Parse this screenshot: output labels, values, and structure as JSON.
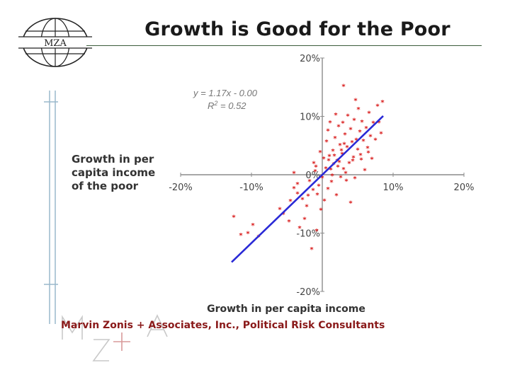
{
  "header": {
    "logo_text": "MZA",
    "title": "Growth is Good for the Poor"
  },
  "footer": {
    "company": "Marvin Zonis + Associates, Inc., Political Risk Consultants"
  },
  "colors": {
    "points": "#d81818",
    "fit_line": "#2a2ad6",
    "axes": "#8c8c8c",
    "footer_text": "#8a1a1a",
    "rule": "#3c5c3c"
  },
  "chart_data": {
    "type": "scatter",
    "title": "",
    "xlabel": "Growth in per capita income",
    "ylabel": "Growth in per capita income of the poor",
    "xlim": [
      -20,
      20
    ],
    "ylim": [
      -20,
      20
    ],
    "x_ticks": [
      "-20%",
      "-10%",
      "10%",
      "20%"
    ],
    "y_ticks": [
      "20%",
      "10%",
      "0%",
      "-10%",
      "-20%"
    ],
    "equation": "y = 1.17x - 0.00",
    "r2_label": "R",
    "r2_sup": "2",
    "r2_value": " = 0.52",
    "fit": {
      "slope": 1.17,
      "intercept": 0.0,
      "x_range": [
        -12.8,
        8.6
      ]
    },
    "grid": false,
    "series": [
      {
        "marker": "asterisk",
        "points": [
          [
            -12.5,
            -7.2
          ],
          [
            -11.5,
            -10.3
          ],
          [
            -10.5,
            -10.0
          ],
          [
            -9.8,
            -8.6
          ],
          [
            -9.0,
            -10.6
          ],
          [
            -6.0,
            -5.9
          ],
          [
            -5.5,
            -6.7
          ],
          [
            -4.7,
            -8.0
          ],
          [
            -4.5,
            -4.5
          ],
          [
            -4.0,
            -2.3
          ],
          [
            -3.5,
            -3.2
          ],
          [
            -3.5,
            -1.6
          ],
          [
            -4.0,
            0.3
          ],
          [
            -3.2,
            -9.1
          ],
          [
            -2.8,
            -4.2
          ],
          [
            -2.5,
            -7.6
          ],
          [
            -2.2,
            -5.4
          ],
          [
            -2.0,
            -3.6
          ],
          [
            -1.8,
            -1.1
          ],
          [
            -1.5,
            -12.7
          ],
          [
            -1.3,
            -2.6
          ],
          [
            -1.0,
            0.6
          ],
          [
            -0.8,
            -9.6
          ],
          [
            -0.7,
            -3.4
          ],
          [
            -0.5,
            -1.9
          ],
          [
            -0.2,
            -6.0
          ],
          [
            0.0,
            -0.5
          ],
          [
            0.3,
            -4.4
          ],
          [
            0.5,
            1.1
          ],
          [
            0.8,
            -2.4
          ],
          [
            0.8,
            7.6
          ],
          [
            1.0,
            3.2
          ],
          [
            1.1,
            9.0
          ],
          [
            1.3,
            -1.2
          ],
          [
            1.5,
            4.1
          ],
          [
            1.6,
            1.8
          ],
          [
            1.8,
            6.3
          ],
          [
            2.0,
            -3.5
          ],
          [
            2.1,
            2.4
          ],
          [
            2.3,
            8.3
          ],
          [
            2.5,
            5.1
          ],
          [
            2.6,
            -0.4
          ],
          [
            2.8,
            3.6
          ],
          [
            3.0,
            15.2
          ],
          [
            3.0,
            1.0
          ],
          [
            3.2,
            6.9
          ],
          [
            3.4,
            -1.0
          ],
          [
            3.5,
            4.7
          ],
          [
            3.6,
            10.1
          ],
          [
            3.8,
            2.0
          ],
          [
            4.0,
            7.8
          ],
          [
            4.0,
            -4.8
          ],
          [
            4.2,
            5.6
          ],
          [
            4.4,
            3.0
          ],
          [
            4.5,
            9.4
          ],
          [
            4.6,
            -0.6
          ],
          [
            4.8,
            6.0
          ],
          [
            5.0,
            4.3
          ],
          [
            5.1,
            11.3
          ],
          [
            5.3,
            7.4
          ],
          [
            5.5,
            2.6
          ],
          [
            5.6,
            9.1
          ],
          [
            5.8,
            5.8
          ],
          [
            6.0,
            0.8
          ],
          [
            6.2,
            8.0
          ],
          [
            6.4,
            4.6
          ],
          [
            6.6,
            10.6
          ],
          [
            6.8,
            6.6
          ],
          [
            7.0,
            2.7
          ],
          [
            7.2,
            8.9
          ],
          [
            7.5,
            6.0
          ],
          [
            7.8,
            11.8
          ],
          [
            8.0,
            9.0
          ],
          [
            8.3,
            7.1
          ],
          [
            8.5,
            12.5
          ],
          [
            0.2,
            2.8
          ],
          [
            1.2,
            0.9
          ],
          [
            2.2,
            1.4
          ],
          [
            -1.2,
            2.0
          ],
          [
            0.6,
            5.7
          ],
          [
            1.7,
            3.3
          ],
          [
            2.7,
            4.2
          ],
          [
            3.3,
            0.3
          ],
          [
            4.3,
            2.4
          ],
          [
            -0.3,
            3.9
          ],
          [
            1.4,
            -0.1
          ],
          [
            2.4,
            2.2
          ],
          [
            3.1,
            5.3
          ],
          [
            0.9,
            2.5
          ],
          [
            5.4,
            3.4
          ],
          [
            -0.9,
            1.4
          ],
          [
            6.5,
            3.8
          ],
          [
            2.9,
            8.9
          ],
          [
            1.9,
            10.3
          ],
          [
            4.7,
            12.8
          ]
        ]
      }
    ]
  }
}
